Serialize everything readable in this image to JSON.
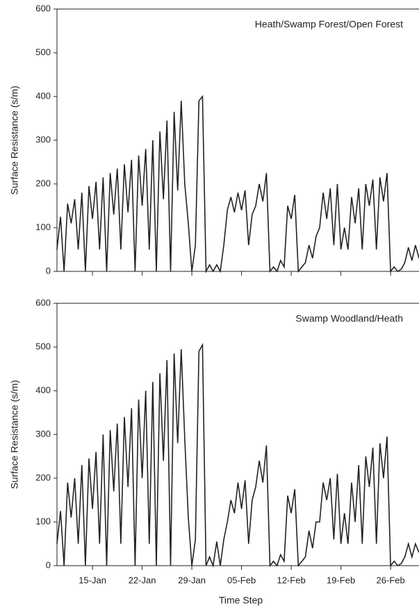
{
  "chart_data": [
    {
      "type": "line",
      "title": "Heath/Swamp Forest/Open Forest",
      "y_label": "Surface Resistance (s/m)",
      "x": [
        10,
        10.5,
        11,
        11.5,
        12,
        12.5,
        13,
        13.5,
        14,
        14.5,
        15,
        15.5,
        16,
        16.5,
        17,
        17.5,
        18,
        18.5,
        19,
        19.5,
        20,
        20.5,
        21,
        21.5,
        22,
        22.5,
        23,
        23.5,
        24,
        24.5,
        25,
        25.5,
        26,
        26.5,
        27,
        27.5,
        28,
        28.5,
        29,
        29.5,
        30,
        30.5,
        31,
        31.5,
        32,
        32.5,
        33,
        33.5,
        34,
        34.5,
        35,
        35.5,
        36,
        36.5,
        37,
        37.5,
        38,
        38.5,
        39,
        39.5,
        40,
        40.5,
        41,
        41.5,
        42,
        42.5,
        43,
        43.5,
        44,
        44.5,
        45,
        45.5,
        46,
        46.5,
        47,
        47.5,
        48,
        48.5,
        49,
        49.5,
        50,
        50.5,
        51,
        51.5,
        52,
        52.5,
        53,
        53.5,
        54,
        54.5,
        55,
        55.5,
        56,
        56.5,
        57,
        57.5,
        58,
        58.5,
        59,
        59.5,
        60,
        60.5,
        61
      ],
      "values": [
        50,
        125,
        0,
        155,
        110,
        165,
        50,
        180,
        0,
        195,
        120,
        205,
        50,
        215,
        0,
        225,
        130,
        235,
        50,
        245,
        135,
        255,
        0,
        265,
        150,
        280,
        50,
        300,
        0,
        320,
        165,
        345,
        0,
        365,
        185,
        390,
        200,
        110,
        0,
        60,
        390,
        400,
        0,
        15,
        0,
        15,
        0,
        60,
        140,
        170,
        135,
        180,
        140,
        185,
        60,
        130,
        150,
        200,
        160,
        225,
        0,
        10,
        0,
        25,
        10,
        150,
        120,
        175,
        0,
        10,
        20,
        60,
        30,
        80,
        100,
        180,
        120,
        190,
        60,
        200,
        50,
        100,
        50,
        170,
        110,
        190,
        50,
        200,
        150,
        210,
        50,
        215,
        160,
        225,
        0,
        10,
        0,
        5,
        20,
        55,
        25,
        60,
        30
      ],
      "color": "#222222",
      "xlim": [
        10,
        61
      ],
      "xticks": [
        15,
        22,
        29,
        36,
        43,
        50,
        57
      ],
      "ylim": [
        0,
        600
      ],
      "yticks": [
        0,
        100,
        200,
        300,
        400,
        500,
        600
      ]
    },
    {
      "type": "line",
      "title": "Swamp Woodland/Heath",
      "y_label": "Surface Resistance (s/m)",
      "x_label": "Time Step",
      "x": [
        10,
        10.5,
        11,
        11.5,
        12,
        12.5,
        13,
        13.5,
        14,
        14.5,
        15,
        15.5,
        16,
        16.5,
        17,
        17.5,
        18,
        18.5,
        19,
        19.5,
        20,
        20.5,
        21,
        21.5,
        22,
        22.5,
        23,
        23.5,
        24,
        24.5,
        25,
        25.5,
        26,
        26.5,
        27,
        27.5,
        28,
        28.5,
        29,
        29.5,
        30,
        30.5,
        31,
        31.5,
        32,
        32.5,
        33,
        33.5,
        34,
        34.5,
        35,
        35.5,
        36,
        36.5,
        37,
        37.5,
        38,
        38.5,
        39,
        39.5,
        40,
        40.5,
        41,
        41.5,
        42,
        42.5,
        43,
        43.5,
        44,
        44.5,
        45,
        45.5,
        46,
        46.5,
        47,
        47.5,
        48,
        48.5,
        49,
        49.5,
        50,
        50.5,
        51,
        51.5,
        52,
        52.5,
        53,
        53.5,
        54,
        54.5,
        55,
        55.5,
        56,
        56.5,
        57,
        57.5,
        58,
        58.5,
        59,
        59.5,
        60,
        60.5,
        61
      ],
      "values": [
        50,
        125,
        0,
        190,
        110,
        200,
        50,
        230,
        0,
        245,
        130,
        260,
        50,
        300,
        0,
        310,
        170,
        325,
        50,
        340,
        180,
        360,
        0,
        380,
        200,
        400,
        50,
        420,
        0,
        440,
        240,
        470,
        0,
        485,
        280,
        495,
        290,
        110,
        0,
        60,
        490,
        505,
        0,
        20,
        0,
        55,
        0,
        60,
        100,
        150,
        120,
        190,
        130,
        195,
        50,
        150,
        180,
        240,
        190,
        275,
        0,
        10,
        0,
        25,
        10,
        160,
        120,
        175,
        0,
        10,
        20,
        80,
        40,
        100,
        100,
        190,
        150,
        200,
        60,
        210,
        50,
        120,
        50,
        190,
        100,
        230,
        50,
        250,
        180,
        270,
        50,
        280,
        200,
        295,
        0,
        10,
        0,
        5,
        20,
        50,
        20,
        50,
        30
      ],
      "color": "#222222",
      "xlim": [
        10,
        61
      ],
      "xticks": [
        {
          "value": 15,
          "label": "15-Jan"
        },
        {
          "value": 22,
          "label": "22-Jan"
        },
        {
          "value": 29,
          "label": "29-Jan"
        },
        {
          "value": 36,
          "label": "05-Feb"
        },
        {
          "value": 43,
          "label": "12-Feb"
        },
        {
          "value": 50,
          "label": "19-Feb"
        },
        {
          "value": 57,
          "label": "26-Feb"
        }
      ],
      "ylim": [
        0,
        600
      ],
      "yticks": [
        0,
        100,
        200,
        300,
        400,
        500,
        600
      ]
    }
  ]
}
